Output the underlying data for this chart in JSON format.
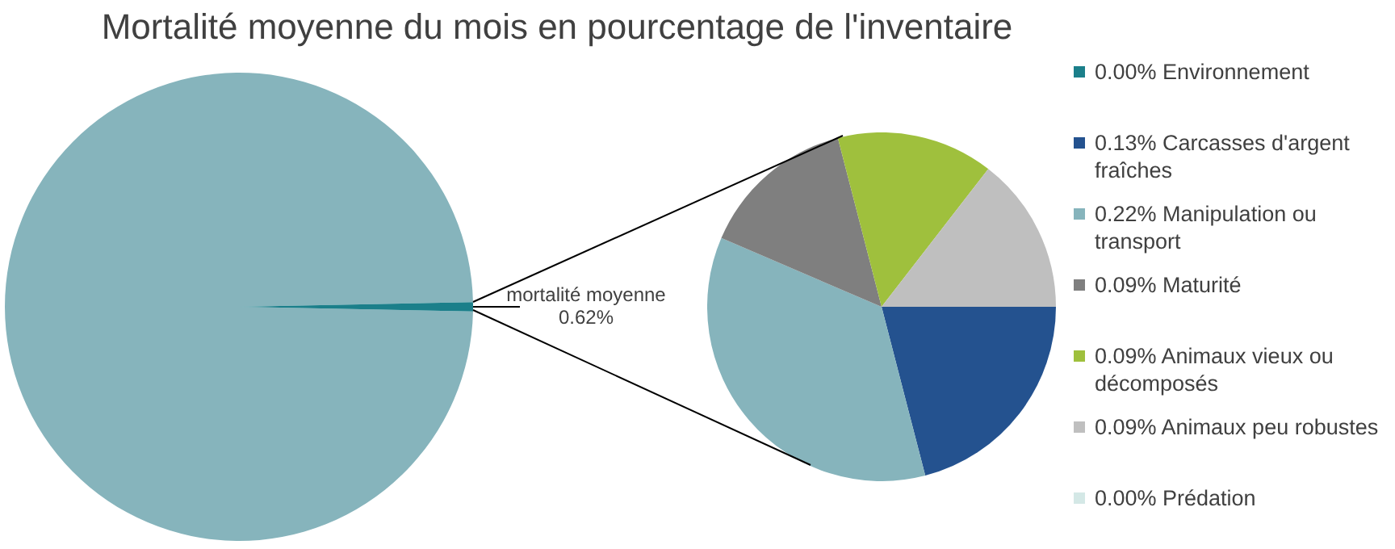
{
  "chart_data": [
    {
      "type": "pie",
      "title": "Mortalité moyenne du mois en pourcentage de l'inventaire",
      "categories": [
        null,
        "mortalité moyenne"
      ],
      "values": [
        99.38,
        0.62
      ],
      "colors": [
        "#86b4bc",
        "#1b7f8a"
      ],
      "value_labels": [
        null,
        "0.62%"
      ],
      "legend": false
    },
    {
      "type": "pie",
      "categories": [
        "0.00% Environnement",
        "0.13% Carcasses d'argent fraîches",
        "0.22% Manipulation ou transport",
        "0.09% Maturité",
        "0.09% Animaux vieux ou décomposés",
        "0.09% Animaux peu robustes",
        "0.00% Prédation"
      ],
      "values": [
        0,
        0.13,
        0.22,
        0.09,
        0.09,
        0.09,
        0
      ],
      "colors": [
        "#1b7f8a",
        "#24528f",
        "#86b4bc",
        "#7f7f7f",
        "#9fc03d",
        "#bfbfbf",
        "#d4e8e6"
      ],
      "legend": "right"
    }
  ]
}
